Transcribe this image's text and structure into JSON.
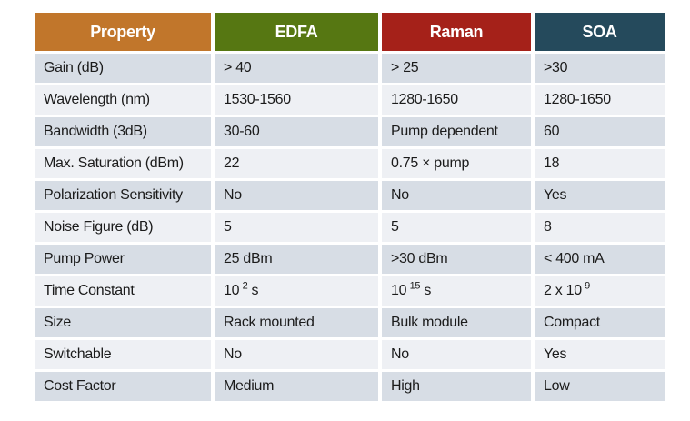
{
  "table": {
    "columns": [
      {
        "key": "property",
        "label": "Property",
        "color": "#C1762B"
      },
      {
        "key": "edfa",
        "label": "EDFA",
        "color": "#567712"
      },
      {
        "key": "raman",
        "label": "Raman",
        "color": "#A52119"
      },
      {
        "key": "soa",
        "label": "SOA",
        "color": "#254A5C"
      }
    ],
    "rows": [
      {
        "property": "Gain (dB)",
        "edfa": "> 40",
        "raman": "> 25",
        "soa": ">30"
      },
      {
        "property": "Wavelength (nm)",
        "edfa": "1530-1560",
        "raman": "1280-1650",
        "soa": "1280-1650"
      },
      {
        "property": "Bandwidth (3dB)",
        "edfa": "30-60",
        "raman": "Pump dependent",
        "soa": "60"
      },
      {
        "property": "Max. Saturation (dBm)",
        "edfa": "22",
        "raman": "0.75 × pump",
        "soa": "18"
      },
      {
        "property": "Polarization Sensitivity",
        "edfa": "No",
        "raman": "No",
        "soa": "Yes"
      },
      {
        "property": "Noise Figure (dB)",
        "edfa": "5",
        "raman": "5",
        "soa": "8"
      },
      {
        "property": "Pump Power",
        "edfa": "25 dBm",
        "raman": ">30 dBm",
        "soa": "< 400 mA"
      },
      {
        "property": "Time Constant",
        "edfa": "10^{-2} s",
        "raman": "10^{-15} s",
        "soa": "2 x 10^{-9}"
      },
      {
        "property": "Size",
        "edfa": "Rack mounted",
        "raman": "Bulk module",
        "soa": "Compact"
      },
      {
        "property": "Switchable",
        "edfa": "No",
        "raman": "No",
        "soa": "Yes"
      },
      {
        "property": "Cost Factor",
        "edfa": "Medium",
        "raman": "High",
        "soa": "Low"
      }
    ],
    "stripe_colors": {
      "odd": "#D7DDE5",
      "even": "#EEF0F4"
    },
    "text_color": "#1B1B1B",
    "header_text_color": "#FFFFFF"
  }
}
